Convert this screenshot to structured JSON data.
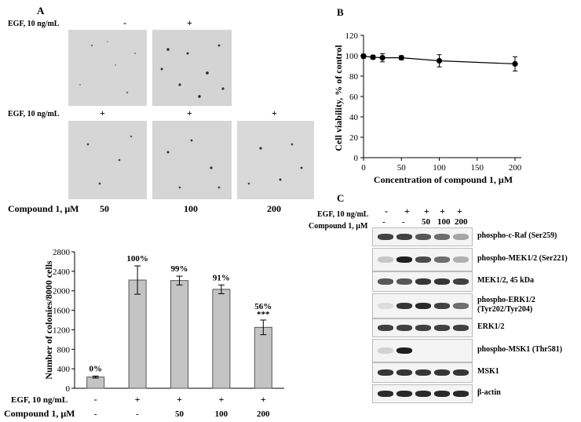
{
  "panels": {
    "a": "A",
    "b": "B",
    "c": "C"
  },
  "micrographs": {
    "egf_label": "EGF, 10 ng/mL",
    "row1_signs": [
      "-",
      "+"
    ],
    "row2_signs": [
      "+",
      "+",
      "+"
    ],
    "compound_label": "Compound 1, μM",
    "compound_values": [
      "50",
      "100",
      "200"
    ]
  },
  "chart_data": [
    {
      "type": "bar",
      "panel": "A",
      "ylabel": "Number of colonies/8000 cells",
      "ylim": [
        0,
        2800
      ],
      "yticks": [
        0,
        400,
        800,
        1200,
        1600,
        2000,
        2400,
        2800
      ],
      "categories": [
        "1",
        "2",
        "3",
        "4",
        "5"
      ],
      "values": [
        230,
        2220,
        2210,
        2030,
        1250
      ],
      "errors": [
        20,
        290,
        90,
        90,
        150
      ],
      "percent_labels": [
        "0%",
        "100%",
        "99%",
        "91%",
        "56%"
      ],
      "significance": [
        "",
        "",
        "",
        "",
        "***"
      ],
      "egf_label": "EGF, 10 ng/mL",
      "egf_signs": [
        "-",
        "+",
        "+",
        "+",
        "+"
      ],
      "compound_label": "Compound 1, μM",
      "compound_values": [
        "-",
        "-",
        "50",
        "100",
        "200"
      ]
    },
    {
      "type": "line",
      "panel": "B",
      "xlabel": "Concentration of compound 1, μM",
      "ylabel": "Cell viability, % of control",
      "x": [
        0,
        12.5,
        25,
        50,
        100,
        200
      ],
      "y": [
        99.5,
        98.5,
        98,
        98,
        95,
        92
      ],
      "errors": [
        2,
        2,
        4,
        2,
        6,
        7
      ],
      "xlim": [
        0,
        200
      ],
      "ylim": [
        0,
        120
      ],
      "xticks": [
        0,
        50,
        100,
        150,
        200
      ],
      "yticks": [
        0,
        20,
        40,
        60,
        80,
        100,
        120
      ]
    }
  ],
  "western": {
    "egf_label": "EGF, 10 ng/mL",
    "egf_signs": [
      "-",
      "+",
      "+",
      "+",
      "+"
    ],
    "compound_label": "Compound 1, μM",
    "compound_values": [
      "-",
      "-",
      "50",
      "100",
      "200"
    ],
    "rows": [
      {
        "label": "phospho-c-Raf (Ser259)"
      },
      {
        "label": "phospho-MEK1/2 (Ser221)"
      },
      {
        "label": "MEK1/2, 45 kDa"
      },
      {
        "label": "phospho-ERK1/2",
        "label2": "(Tyr202/Tyr204)"
      },
      {
        "label": "ERK1/2"
      },
      {
        "label": "phospho-MSK1 (Thr581)"
      },
      {
        "label": "MSK1"
      },
      {
        "label": "β-actin"
      }
    ]
  }
}
